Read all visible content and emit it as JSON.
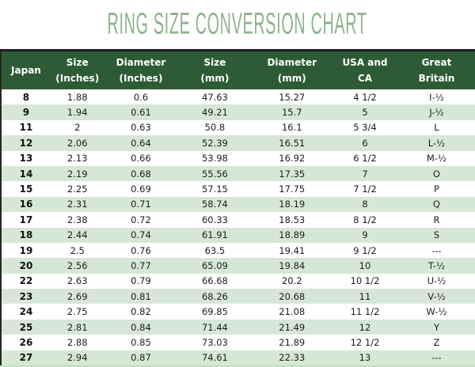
{
  "page": {
    "title": "RING SIZE CONVERSION CHART"
  },
  "colors": {
    "title_green": "#8bb48b",
    "header_bg": "#2d5b36",
    "header_text": "#ffffff",
    "stripe_bg": "#d6e8d5",
    "row_bg": "#ffffff",
    "body_text": "#1c1c1c",
    "border_dark": "#262626"
  },
  "chart_data": {
    "type": "table",
    "title": "RING SIZE CONVERSION CHART",
    "columns": [
      "Japan",
      "Size (Inches)",
      "Diameter (Inches)",
      "Size (mm)",
      "Diameter (mm)",
      "USA and CA",
      "Great Britain"
    ],
    "header_lines": [
      [
        "Japan",
        ""
      ],
      [
        "Size",
        "(Inches)"
      ],
      [
        "Diameter",
        "(Inches)"
      ],
      [
        "Size",
        "(mm)"
      ],
      [
        "Diameter",
        "(mm)"
      ],
      [
        "USA and",
        "CA"
      ],
      [
        "Great",
        "Britain"
      ]
    ],
    "rows": [
      [
        "8",
        "1.88",
        "0.6",
        "47.63",
        "15.27",
        "4 1/2",
        "I-½"
      ],
      [
        "9",
        "1.94",
        "0.61",
        "49.21",
        "15.7",
        "5",
        "J-½"
      ],
      [
        "11",
        "2",
        "0.63",
        "50.8",
        "16.1",
        "5 3/4",
        "L"
      ],
      [
        "12",
        "2.06",
        "0.64",
        "52.39",
        "16.51",
        "6",
        "L-½"
      ],
      [
        "13",
        "2.13",
        "0.66",
        "53.98",
        "16.92",
        "6 1/2",
        "M-½"
      ],
      [
        "14",
        "2.19",
        "0.68",
        "55.56",
        "17.35",
        "7",
        "O"
      ],
      [
        "15",
        "2.25",
        "0.69",
        "57.15",
        "17.75",
        "7 1/2",
        "P"
      ],
      [
        "16",
        "2.31",
        "0.71",
        "58.74",
        "18.19",
        "8",
        "Q"
      ],
      [
        "17",
        "2.38",
        "0.72",
        "60.33",
        "18.53",
        "8 1/2",
        "R"
      ],
      [
        "18",
        "2.44",
        "0.74",
        "61.91",
        "18.89",
        "9",
        "S"
      ],
      [
        "19",
        "2.5",
        "0.76",
        "63.5",
        "19.41",
        "9 1/2",
        "---"
      ],
      [
        "20",
        "2.56",
        "0.77",
        "65.09",
        "19.84",
        "10",
        "T-½"
      ],
      [
        "22",
        "2.63",
        "0.79",
        "66.68",
        "20.2",
        "10 1/2",
        "U-½"
      ],
      [
        "23",
        "2.69",
        "0.81",
        "68.26",
        "20.68",
        "11",
        "V-½"
      ],
      [
        "24",
        "2.75",
        "0.82",
        "69.85",
        "21.08",
        "11 1/2",
        "W-½"
      ],
      [
        "25",
        "2.81",
        "0.84",
        "71.44",
        "21.49",
        "12",
        "Y"
      ],
      [
        "26",
        "2.88",
        "0.85",
        "73.03",
        "21.89",
        "12 1/2",
        "Z"
      ],
      [
        "27",
        "2.94",
        "0.87",
        "74.61",
        "22.33",
        "13",
        "---"
      ]
    ],
    "column_slugs": [
      "japan",
      "size-inches",
      "diameter-inches",
      "size-mm",
      "diameter-mm",
      "usa-ca",
      "great-britain"
    ],
    "layout": {
      "striped": true,
      "header_position": "top",
      "grid": false
    }
  }
}
